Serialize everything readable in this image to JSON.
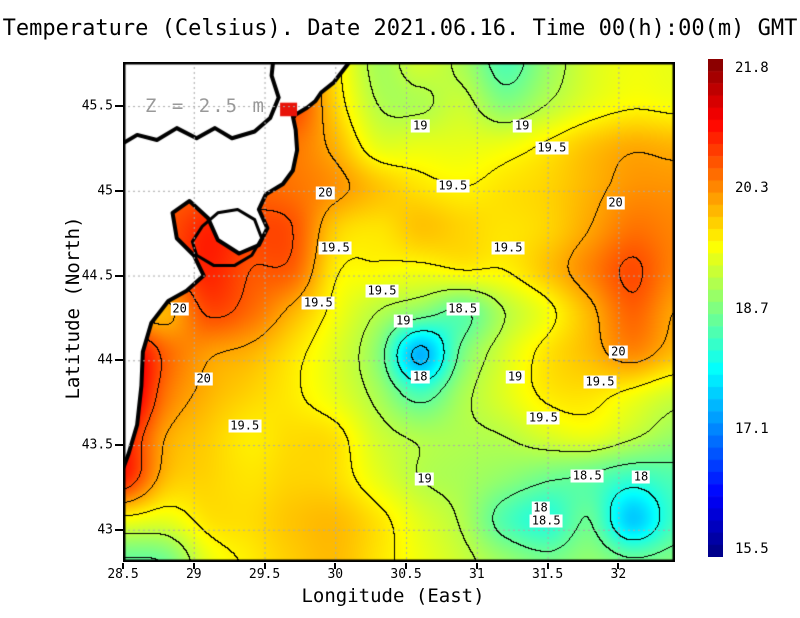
{
  "title": "Temperature (Celsius). Date 2021.06.16. Time 00(h):00(m) GMT",
  "annotation": "Z = 2.5 m",
  "axes": {
    "x_label": "Longitude (East)",
    "y_label": "Latitude (North)",
    "x_ticks": [
      {
        "label": "28.5",
        "value": 28.5
      },
      {
        "label": "29",
        "value": 29
      },
      {
        "label": "29.5",
        "value": 29.5
      },
      {
        "label": "30",
        "value": 30
      },
      {
        "label": "30.5",
        "value": 30.5
      },
      {
        "label": "31",
        "value": 31
      },
      {
        "label": "31.5",
        "value": 31.5
      },
      {
        "label": "32",
        "value": 32
      }
    ],
    "y_ticks": [
      {
        "label": "45.5",
        "value": 45.5
      },
      {
        "label": "45",
        "value": 45
      },
      {
        "label": "44.5",
        "value": 44.5
      },
      {
        "label": "44",
        "value": 44
      },
      {
        "label": "43.5",
        "value": 43.5
      },
      {
        "label": "43",
        "value": 43
      }
    ]
  },
  "colorbar": {
    "min": 15.5,
    "max": 21.8,
    "tick_labels": [
      "21.8",
      "20.3",
      "18.7",
      "17.1",
      "15.5"
    ],
    "colormap": "jet",
    "segments": 41
  },
  "chart_data": {
    "type": "heatmap",
    "title": "Temperature (Celsius). Date 2021.06.16. Time 00(h):00(m) GMT",
    "units": "Celsius",
    "depth_annotation": "Z = 2.5 m",
    "xlabel": "Longitude (East)",
    "ylabel": "Latitude (North)",
    "x_range": [
      28.5,
      32.4
    ],
    "y_range": [
      42.81,
      45.76
    ],
    "value_range": [
      15.5,
      21.8
    ],
    "gridline_step": 0.5,
    "grid_color": "#aaaaaa",
    "contour_color": "#000000",
    "contour_levels": [
      17.5,
      18,
      18.5,
      19,
      19.5,
      20,
      20.5,
      21
    ],
    "grid_lons": [
      28.5,
      28.8,
      29.1,
      29.4,
      29.7,
      30.0,
      30.3,
      30.6,
      30.9,
      31.2,
      31.5,
      31.8,
      32.1,
      32.4
    ],
    "grid_lats": [
      45.76,
      45.51,
      45.26,
      45.02,
      44.77,
      44.52,
      44.28,
      44.03,
      43.78,
      43.53,
      43.29,
      43.04,
      42.81
    ],
    "values": [
      [
        20.3,
        20.3,
        20.3,
        20.4,
        20.5,
        19.6,
        18.9,
        19.15,
        18.9,
        18.35,
        18.8,
        19.2,
        19.35,
        19.3
      ],
      [
        20.3,
        20.3,
        20.3,
        20.4,
        20.6,
        19.7,
        19.0,
        18.95,
        19.1,
        18.7,
        19.0,
        19.3,
        19.45,
        19.4
      ],
      [
        20.3,
        20.3,
        20.3,
        20.4,
        20.3,
        19.9,
        19.3,
        19.3,
        19.3,
        19.35,
        19.55,
        19.8,
        19.95,
        19.9
      ],
      [
        20.4,
        20.4,
        20.4,
        20.4,
        20.3,
        20.1,
        19.8,
        19.6,
        19.5,
        19.6,
        19.7,
        19.9,
        20.1,
        20.1
      ],
      [
        20.5,
        20.5,
        20.8,
        20.6,
        20.5,
        19.75,
        19.6,
        19.8,
        19.7,
        19.6,
        19.7,
        20.0,
        20.3,
        20.2
      ],
      [
        20.6,
        20.5,
        20.8,
        20.5,
        20.4,
        19.55,
        19.45,
        19.4,
        19.5,
        19.5,
        19.8,
        20.2,
        20.55,
        20.2
      ],
      [
        20.0,
        19.9,
        20.55,
        20.35,
        19.9,
        19.4,
        19.0,
        18.7,
        18.45,
        19.0,
        19.4,
        19.9,
        20.4,
        20.0
      ],
      [
        21.3,
        20.4,
        20.05,
        19.9,
        19.6,
        19.25,
        18.7,
        17.4,
        18.6,
        19.2,
        19.6,
        19.85,
        20.15,
        19.85
      ],
      [
        21.4,
        20.3,
        19.9,
        19.7,
        19.55,
        19.3,
        18.9,
        18.35,
        18.9,
        19.25,
        19.55,
        19.6,
        19.4,
        19.15
      ],
      [
        20.9,
        20.0,
        19.75,
        19.55,
        19.65,
        19.6,
        19.15,
        18.95,
        18.95,
        19.0,
        19.2,
        19.3,
        19.05,
        18.8
      ],
      [
        20.8,
        19.85,
        19.7,
        19.6,
        19.7,
        19.65,
        19.3,
        19.0,
        18.9,
        18.75,
        18.55,
        18.45,
        18.2,
        18.35
      ],
      [
        19.4,
        19.3,
        19.6,
        19.65,
        19.8,
        19.85,
        19.6,
        19.25,
        18.95,
        18.35,
        18.1,
        18.5,
        17.55,
        18.25
      ],
      [
        18.45,
        18.55,
        19.3,
        19.55,
        19.75,
        19.85,
        19.6,
        19.35,
        19.1,
        18.8,
        18.6,
        18.75,
        18.55,
        18.65
      ]
    ],
    "contour_labels": [
      {
        "text": "19",
        "lon": 30.6,
        "lat": 45.38
      },
      {
        "text": "19",
        "lon": 31.32,
        "lat": 45.38
      },
      {
        "text": "19.5",
        "lon": 31.53,
        "lat": 45.25
      },
      {
        "text": "19.5",
        "lon": 30.83,
        "lat": 45.03
      },
      {
        "text": "20",
        "lon": 31.98,
        "lat": 44.93
      },
      {
        "text": "20",
        "lon": 29.93,
        "lat": 44.99
      },
      {
        "text": "19.5",
        "lon": 30.0,
        "lat": 44.66
      },
      {
        "text": "19.5",
        "lon": 31.22,
        "lat": 44.66
      },
      {
        "text": "19.5",
        "lon": 30.33,
        "lat": 44.41
      },
      {
        "text": "18.5",
        "lon": 30.9,
        "lat": 44.3
      },
      {
        "text": "19",
        "lon": 30.48,
        "lat": 44.23
      },
      {
        "text": "18",
        "lon": 30.6,
        "lat": 43.9
      },
      {
        "text": "19",
        "lon": 31.27,
        "lat": 43.9
      },
      {
        "text": "19.5",
        "lon": 31.87,
        "lat": 43.87
      },
      {
        "text": "20",
        "lon": 32.0,
        "lat": 44.05
      },
      {
        "text": "19.5",
        "lon": 31.47,
        "lat": 43.66
      },
      {
        "text": "20",
        "lon": 28.9,
        "lat": 44.3
      },
      {
        "text": "20",
        "lon": 29.07,
        "lat": 43.89
      },
      {
        "text": "19.5",
        "lon": 29.88,
        "lat": 44.34
      },
      {
        "text": "19.5",
        "lon": 29.36,
        "lat": 43.61
      },
      {
        "text": "19",
        "lon": 30.63,
        "lat": 43.3
      },
      {
        "text": "18.5",
        "lon": 31.78,
        "lat": 43.32
      },
      {
        "text": "18",
        "lon": 32.16,
        "lat": 43.31
      },
      {
        "text": "18",
        "lon": 31.45,
        "lat": 43.13
      },
      {
        "text": "18.5",
        "lon": 31.49,
        "lat": 43.05
      }
    ],
    "land": {
      "fill": "#ffffff",
      "stroke": "#000000",
      "coast": [
        [
          28.5,
          43.36
        ],
        [
          28.54,
          43.45
        ],
        [
          28.6,
          43.62
        ],
        [
          28.63,
          43.85
        ],
        [
          28.64,
          44.05
        ],
        [
          28.7,
          44.22
        ],
        [
          28.82,
          44.35
        ],
        [
          28.95,
          44.41
        ],
        [
          29.07,
          44.5
        ],
        [
          29.0,
          44.62
        ],
        [
          28.88,
          44.72
        ],
        [
          28.85,
          44.87
        ],
        [
          28.97,
          44.94
        ],
        [
          29.1,
          44.84
        ],
        [
          29.17,
          44.71
        ],
        [
          29.32,
          44.63
        ],
        [
          29.46,
          44.68
        ],
        [
          29.52,
          44.78
        ],
        [
          29.46,
          44.89
        ],
        [
          29.51,
          44.98
        ],
        [
          29.63,
          45.04
        ],
        [
          29.7,
          45.12
        ],
        [
          29.73,
          45.24
        ],
        [
          29.72,
          45.36
        ],
        [
          29.7,
          45.44
        ],
        [
          29.8,
          45.49
        ],
        [
          29.86,
          45.53
        ],
        [
          29.9,
          45.58
        ],
        [
          29.99,
          45.64
        ],
        [
          30.1,
          45.76
        ]
      ],
      "upper_shoreline": [
        [
          28.5,
          45.28
        ],
        [
          28.6,
          45.33
        ],
        [
          28.74,
          45.3
        ],
        [
          28.88,
          45.37
        ],
        [
          29.02,
          45.31
        ],
        [
          29.15,
          45.37
        ],
        [
          29.27,
          45.31
        ],
        [
          29.43,
          45.35
        ],
        [
          29.54,
          45.43
        ],
        [
          29.6,
          45.55
        ],
        [
          29.55,
          45.68
        ],
        [
          29.56,
          45.76
        ]
      ],
      "lagoon_outline": [
        [
          29.02,
          44.62
        ],
        [
          29.14,
          44.56
        ],
        [
          29.29,
          44.56
        ],
        [
          29.41,
          44.62
        ],
        [
          29.48,
          44.72
        ],
        [
          29.43,
          44.83
        ],
        [
          29.31,
          44.89
        ],
        [
          29.17,
          44.87
        ],
        [
          29.06,
          44.79
        ],
        [
          28.99,
          44.7
        ]
      ],
      "hotspot": {
        "lon": 29.67,
        "lat": 45.48,
        "w": 0.12,
        "h": 0.08,
        "color": "#e81309"
      }
    }
  }
}
